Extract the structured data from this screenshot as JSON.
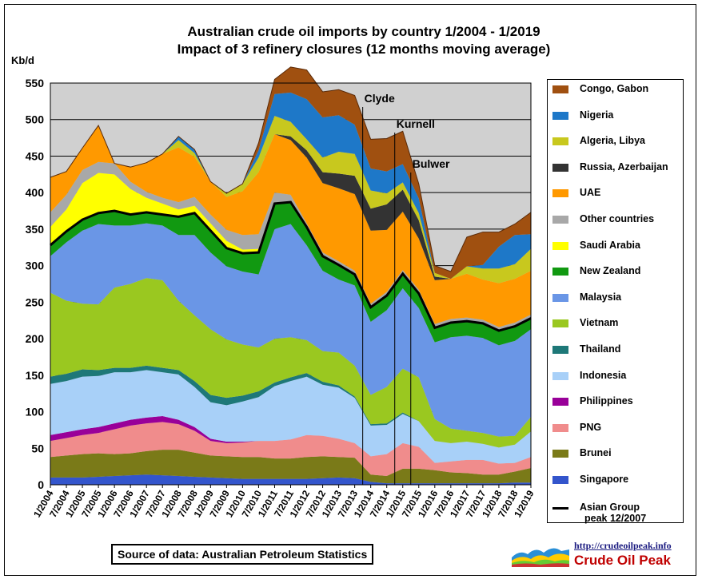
{
  "chart_data": {
    "type": "area",
    "stacked": true,
    "title": "Australian crude oil imports  by country 1/2004 - 1/2019",
    "subtitle": "Impact of 3 refinery closures (12 months moving average)",
    "y_unit_label": "Kb/d",
    "ylim": [
      0,
      550
    ],
    "yticks": [
      0,
      50,
      100,
      150,
      200,
      250,
      300,
      350,
      400,
      450,
      500,
      550
    ],
    "grid": true,
    "legend_position": "right",
    "x_tick_labels": [
      "1/2004",
      "7/2004",
      "1/2005",
      "7/2005",
      "1/2006",
      "7/2006",
      "1/2007",
      "7/2007",
      "1/2008",
      "7/2008",
      "1/2009",
      "7/2009",
      "1/2010",
      "7/2010",
      "1/2011",
      "7/2011",
      "1/2012",
      "7/2012",
      "1/2013",
      "7/2013",
      "1/2014",
      "7/2014",
      "1/2015",
      "7/2015",
      "1/2016",
      "7/2016",
      "1/2017",
      "7/2017",
      "1/2018",
      "7/2018",
      "1/2019"
    ],
    "series": [
      {
        "name": "Singapore",
        "color": "#3355cc",
        "values": [
          10,
          10,
          10,
          11,
          12,
          13,
          14,
          13,
          12,
          11,
          10,
          9,
          8,
          8,
          8,
          8,
          8,
          9,
          10,
          9,
          4,
          2,
          2,
          2,
          2,
          2,
          2,
          2,
          2,
          3,
          3
        ]
      },
      {
        "name": "Brunei",
        "color": "#7a7a18",
        "values": [
          28,
          30,
          32,
          32,
          30,
          30,
          32,
          35,
          36,
          33,
          30,
          30,
          30,
          30,
          28,
          28,
          30,
          30,
          28,
          28,
          10,
          10,
          20,
          20,
          18,
          15,
          14,
          12,
          12,
          15,
          20
        ]
      },
      {
        "name": "PNG",
        "color": "#f08c8c",
        "values": [
          22,
          24,
          26,
          28,
          34,
          38,
          38,
          38,
          35,
          30,
          20,
          18,
          20,
          22,
          24,
          26,
          30,
          28,
          25,
          20,
          25,
          30,
          35,
          30,
          10,
          15,
          18,
          20,
          15,
          12,
          15
        ]
      },
      {
        "name": "Philippines",
        "color": "#990099",
        "values": [
          8,
          8,
          8,
          8,
          8,
          8,
          8,
          8,
          6,
          5,
          3,
          2,
          1,
          0,
          0,
          0,
          0,
          0,
          0,
          0,
          0,
          0,
          0,
          0,
          0,
          0,
          0,
          0,
          0,
          0,
          0
        ]
      },
      {
        "name": "Indonesia",
        "color": "#a8d0f8",
        "values": [
          70,
          70,
          72,
          70,
          70,
          65,
          65,
          60,
          62,
          55,
          50,
          50,
          55,
          60,
          75,
          80,
          80,
          70,
          70,
          62,
          42,
          40,
          40,
          35,
          30,
          25,
          25,
          22,
          22,
          25,
          35
        ]
      },
      {
        "name": "Thailand",
        "color": "#1e7878",
        "values": [
          10,
          10,
          10,
          8,
          6,
          6,
          6,
          6,
          6,
          8,
          10,
          10,
          8,
          8,
          5,
          5,
          5,
          4,
          3,
          2,
          2,
          2,
          2,
          0,
          0,
          0,
          0,
          0,
          0,
          0,
          0
        ]
      },
      {
        "name": "Vietnam",
        "color": "#9ac820",
        "values": [
          115,
          100,
          90,
          90,
          110,
          115,
          120,
          120,
          95,
          90,
          90,
          80,
          70,
          60,
          60,
          55,
          45,
          42,
          45,
          42,
          40,
          50,
          60,
          60,
          30,
          20,
          15,
          15,
          15,
          12,
          20
        ]
      },
      {
        "name": "Malaysia",
        "color": "#6a96e6",
        "values": [
          50,
          80,
          100,
          110,
          85,
          80,
          75,
          75,
          90,
          110,
          105,
          100,
          100,
          100,
          150,
          155,
          130,
          110,
          100,
          110,
          100,
          105,
          110,
          95,
          105,
          125,
          130,
          130,
          125,
          130,
          120
        ]
      },
      {
        "name": "New Zealand",
        "color": "#119911",
        "values": [
          15,
          15,
          15,
          15,
          20,
          15,
          15,
          15,
          25,
          30,
          30,
          25,
          25,
          30,
          35,
          30,
          25,
          20,
          20,
          15,
          20,
          20,
          20,
          20,
          20,
          20,
          20,
          20,
          20,
          20,
          15
        ]
      },
      {
        "name": "Saudi Arabia",
        "color": "#ffff00",
        "values": [
          25,
          30,
          50,
          55,
          50,
          35,
          20,
          15,
          10,
          10,
          10,
          10,
          5,
          5,
          0,
          0,
          0,
          0,
          0,
          0,
          0,
          0,
          0,
          0,
          0,
          0,
          0,
          0,
          0,
          0,
          0
        ]
      },
      {
        "name": "Other countries",
        "color": "#a8a8a8",
        "values": [
          20,
          20,
          18,
          15,
          15,
          10,
          8,
          8,
          10,
          12,
          12,
          15,
          20,
          20,
          15,
          10,
          5,
          5,
          5,
          5,
          5,
          5,
          5,
          5,
          5,
          5,
          5,
          5,
          5,
          5,
          5
        ]
      },
      {
        "name": "UAE",
        "color": "#ff9900",
        "values": [
          48,
          32,
          30,
          50,
          0,
          20,
          40,
          60,
          75,
          55,
          45,
          45,
          60,
          85,
          80,
          75,
          90,
          95,
          100,
          105,
          100,
          85,
          80,
          70,
          60,
          55,
          60,
          55,
          60,
          60,
          60
        ]
      },
      {
        "name": "Russia, Azerbaijan",
        "color": "#333333",
        "values": [
          0,
          0,
          0,
          0,
          0,
          0,
          0,
          0,
          0,
          0,
          0,
          0,
          0,
          0,
          0,
          5,
          10,
          15,
          20,
          25,
          30,
          35,
          30,
          25,
          5,
          0,
          0,
          0,
          0,
          0,
          0
        ]
      },
      {
        "name": "Algeria, Libya",
        "color": "#c8c81e",
        "values": [
          0,
          0,
          0,
          0,
          0,
          0,
          0,
          0,
          10,
          5,
          0,
          5,
          10,
          20,
          25,
          20,
          15,
          20,
          30,
          30,
          25,
          15,
          10,
          10,
          5,
          0,
          10,
          15,
          20,
          20,
          30
        ]
      },
      {
        "name": "Nigeria",
        "color": "#1e78c8",
        "values": [
          0,
          0,
          0,
          0,
          0,
          0,
          0,
          0,
          5,
          5,
          0,
          0,
          0,
          10,
          30,
          40,
          55,
          55,
          50,
          40,
          30,
          30,
          25,
          20,
          0,
          0,
          0,
          5,
          30,
          40,
          20
        ]
      },
      {
        "name": "Congo, Gabon",
        "color": "#a05010",
        "values": [
          0,
          0,
          0,
          0,
          0,
          0,
          0,
          0,
          0,
          0,
          0,
          0,
          0,
          10,
          20,
          35,
          40,
          35,
          35,
          40,
          40,
          45,
          45,
          20,
          10,
          10,
          40,
          45,
          20,
          15,
          30
        ]
      }
    ],
    "asian_group_line": {
      "name": "Asian Group peak 12/2007",
      "color": "#000000",
      "series_included": [
        "Singapore",
        "Brunei",
        "PNG",
        "Philippines",
        "Indonesia",
        "Thailand",
        "Vietnam",
        "Malaysia",
        "New Zealand"
      ]
    },
    "annotations": [
      {
        "text": "Clyde",
        "x_index": 19.5
      },
      {
        "text": "Kurnell",
        "x_index": 21.5
      },
      {
        "text": "Bulwer",
        "x_index": 22.5
      }
    ]
  },
  "legend_order": [
    "Congo, Gabon",
    "Nigeria",
    "Algeria, Libya",
    "Russia, Azerbaijan",
    "UAE",
    "Other countries",
    "Saudi Arabia",
    "New Zealand",
    "Malaysia",
    "Vietnam",
    "Thailand",
    "Indonesia",
    "Philippines",
    "PNG",
    "Brunei",
    "Singapore"
  ],
  "asian_label_line1": "Asian Group",
  "asian_label_line2": "peak 12/2007",
  "source_text": "Source of data: Australian Petroleum Statistics",
  "site_url": "http://crudeoilpeak.info",
  "site_brand": "Crude Oil Peak"
}
